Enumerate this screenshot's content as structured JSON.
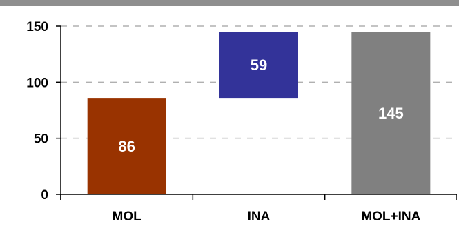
{
  "chart_data": {
    "type": "bar",
    "subtype": "waterfall",
    "categories": [
      "MOL",
      "INA",
      "MOL+INA"
    ],
    "values": [
      86,
      59,
      145
    ],
    "bar_ranges": [
      [
        0,
        86
      ],
      [
        86,
        145
      ],
      [
        0,
        145
      ]
    ],
    "data_labels": [
      "86",
      "59",
      "145"
    ],
    "colors": [
      "#993300",
      "#333399",
      "#808080"
    ],
    "title": "",
    "xlabel": "",
    "ylabel": "",
    "ylim": [
      0,
      150
    ],
    "yticks": [
      "0",
      "50",
      "100",
      "150"
    ],
    "grid": "dashed-horizontal",
    "legend": "none"
  },
  "colors": {
    "top_band": "#8f8f8f",
    "grid": "#b0b0b0",
    "axis": "#000000"
  }
}
